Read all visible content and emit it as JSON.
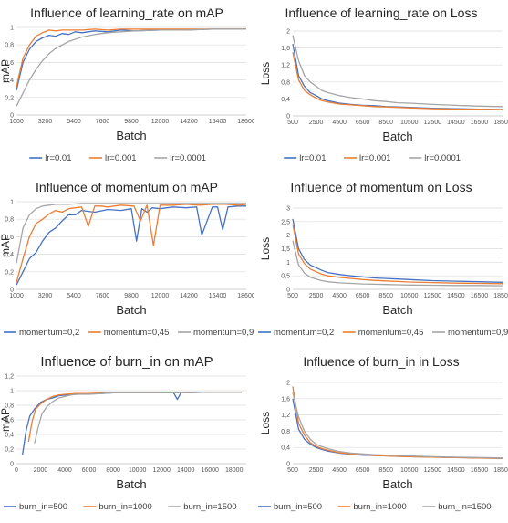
{
  "chart_data": [
    {
      "type": "line",
      "title": "Influence of learning_rate on mAP",
      "xlabel": "Batch",
      "ylabel": "mAP",
      "xlim": [
        1000,
        18600
      ],
      "ylim": [
        0,
        1
      ],
      "x_ticks": [
        "1000",
        "3200",
        "5400",
        "7600",
        "9800",
        "12000",
        "14200",
        "16400",
        "18600"
      ],
      "y_ticks": [
        "0",
        "0,2",
        "0,4",
        "0,6",
        "0,8",
        "1"
      ],
      "grid": true,
      "legend_position": "bottom",
      "series": [
        {
          "name": "lr=0.01",
          "color": "#4472c4",
          "x": [
            1000,
            1500,
            2000,
            2500,
            3000,
            3500,
            4000,
            4500,
            5000,
            5500,
            6000,
            7000,
            8000,
            9000,
            10000,
            12000,
            14000,
            16000,
            18600
          ],
          "y": [
            0.28,
            0.6,
            0.75,
            0.84,
            0.88,
            0.91,
            0.9,
            0.93,
            0.92,
            0.95,
            0.94,
            0.96,
            0.95,
            0.97,
            0.96,
            0.97,
            0.97,
            0.98,
            0.98
          ]
        },
        {
          "name": "lr=0.001",
          "color": "#ed7d31",
          "x": [
            1000,
            1500,
            2000,
            2500,
            3000,
            3500,
            4000,
            4500,
            5000,
            6000,
            7000,
            8000,
            9000,
            10000,
            12000,
            14000,
            16000,
            18600
          ],
          "y": [
            0.32,
            0.65,
            0.8,
            0.9,
            0.94,
            0.97,
            0.96,
            0.97,
            0.97,
            0.97,
            0.98,
            0.97,
            0.98,
            0.98,
            0.98,
            0.98,
            0.98,
            0.98
          ]
        },
        {
          "name": "lr=0.0001",
          "color": "#a5a5a5",
          "x": [
            1000,
            1500,
            2000,
            2500,
            3000,
            3500,
            4000,
            5000,
            6000,
            7000,
            8000,
            9000,
            10000,
            12000,
            14000,
            16000,
            18600
          ],
          "y": [
            0.1,
            0.25,
            0.4,
            0.52,
            0.62,
            0.7,
            0.76,
            0.84,
            0.89,
            0.92,
            0.94,
            0.95,
            0.96,
            0.97,
            0.97,
            0.98,
            0.98
          ]
        }
      ]
    },
    {
      "type": "line",
      "title": "Influence of learning_rate on Loss",
      "xlabel": "Batch",
      "ylabel": "Loss",
      "xlim": [
        500,
        18500
      ],
      "ylim": [
        0,
        2
      ],
      "x_ticks": [
        "500",
        "2500",
        "4500",
        "6500",
        "8500",
        "10500",
        "12500",
        "14500",
        "16500",
        "18500"
      ],
      "y_ticks": [
        "0",
        "0,4",
        "0,8",
        "1,2",
        "1,6",
        "2"
      ],
      "grid": true,
      "legend_position": "bottom",
      "series": [
        {
          "name": "lr=0.01",
          "color": "#4472c4",
          "x": [
            500,
            1000,
            1500,
            2000,
            2500,
            3000,
            3500,
            4500,
            5500,
            6500,
            7500,
            8500,
            9500,
            10500,
            12500,
            14500,
            16500,
            18500
          ],
          "y": [
            1.7,
            0.95,
            0.7,
            0.55,
            0.48,
            0.4,
            0.36,
            0.3,
            0.27,
            0.25,
            0.24,
            0.22,
            0.21,
            0.2,
            0.18,
            0.17,
            0.16,
            0.15
          ]
        },
        {
          "name": "lr=0.001",
          "color": "#ed7d31",
          "x": [
            500,
            1000,
            1500,
            2000,
            2500,
            3000,
            3500,
            4500,
            5500,
            6500,
            7500,
            8500,
            9500,
            10500,
            12500,
            14500,
            16500,
            18500
          ],
          "y": [
            1.5,
            0.85,
            0.6,
            0.5,
            0.42,
            0.36,
            0.33,
            0.28,
            0.26,
            0.24,
            0.22,
            0.21,
            0.2,
            0.19,
            0.17,
            0.16,
            0.16,
            0.15
          ]
        },
        {
          "name": "lr=0.0001",
          "color": "#a5a5a5",
          "x": [
            500,
            1000,
            1500,
            2000,
            2500,
            3000,
            3500,
            4500,
            5500,
            6500,
            7500,
            8500,
            9500,
            10500,
            12500,
            14500,
            16500,
            18500
          ],
          "y": [
            1.9,
            1.3,
            0.95,
            0.8,
            0.7,
            0.6,
            0.55,
            0.48,
            0.43,
            0.4,
            0.36,
            0.34,
            0.31,
            0.3,
            0.27,
            0.25,
            0.23,
            0.22
          ]
        }
      ]
    },
    {
      "type": "line",
      "title": "Influence of momentum on mAP",
      "xlabel": "Batch",
      "ylabel": "mAP",
      "xlim": [
        1000,
        18600
      ],
      "ylim": [
        0,
        1
      ],
      "x_ticks": [
        "1000",
        "3200",
        "5400",
        "7600",
        "9800",
        "12000",
        "14200",
        "16400",
        "18600"
      ],
      "y_ticks": [
        "0",
        "0,2",
        "0,4",
        "0,6",
        "0,8",
        "1"
      ],
      "grid": true,
      "legend_position": "bottom",
      "series": [
        {
          "name": "momentum=0,2",
          "color": "#4472c4",
          "x": [
            1000,
            1500,
            2000,
            2500,
            3000,
            3500,
            4000,
            4500,
            5000,
            5500,
            6000,
            7000,
            8000,
            9000,
            9800,
            10200,
            10600,
            11000,
            11400,
            12000,
            13000,
            14000,
            14800,
            15200,
            16000,
            16400,
            16800,
            17200,
            18000,
            18600
          ],
          "y": [
            0.05,
            0.2,
            0.35,
            0.42,
            0.55,
            0.65,
            0.7,
            0.78,
            0.85,
            0.85,
            0.9,
            0.88,
            0.91,
            0.9,
            0.92,
            0.55,
            0.92,
            0.88,
            0.93,
            0.92,
            0.94,
            0.93,
            0.94,
            0.62,
            0.94,
            0.94,
            0.68,
            0.94,
            0.95,
            0.95
          ]
        },
        {
          "name": "momentum=0,45",
          "color": "#ed7d31",
          "x": [
            1000,
            1500,
            2000,
            2500,
            3000,
            3500,
            4000,
            4500,
            5000,
            5500,
            6000,
            6500,
            7000,
            7500,
            8000,
            9000,
            10000,
            10500,
            11000,
            11500,
            12000,
            13000,
            14000,
            15000,
            16000,
            17000,
            18000,
            18600
          ],
          "y": [
            0.08,
            0.35,
            0.6,
            0.75,
            0.8,
            0.86,
            0.9,
            0.88,
            0.92,
            0.93,
            0.94,
            0.72,
            0.95,
            0.95,
            0.94,
            0.96,
            0.95,
            0.78,
            0.96,
            0.5,
            0.96,
            0.96,
            0.97,
            0.96,
            0.97,
            0.97,
            0.96,
            0.97
          ]
        },
        {
          "name": "momentum=0,9",
          "color": "#a5a5a5",
          "x": [
            1000,
            1500,
            2000,
            2500,
            3000,
            3500,
            4000,
            4500,
            5000,
            6000,
            7000,
            8000,
            9000,
            10000,
            12000,
            14000,
            16000,
            18600
          ],
          "y": [
            0.3,
            0.7,
            0.85,
            0.92,
            0.95,
            0.96,
            0.97,
            0.97,
            0.97,
            0.98,
            0.98,
            0.98,
            0.98,
            0.98,
            0.98,
            0.98,
            0.98,
            0.98
          ]
        }
      ]
    },
    {
      "type": "line",
      "title": "Influence of momentum on Loss",
      "xlabel": "Batch",
      "ylabel": "Loss",
      "xlim": [
        500,
        18500
      ],
      "ylim": [
        0,
        3
      ],
      "x_ticks": [
        "500",
        "2500",
        "4500",
        "6500",
        "8500",
        "10500",
        "12500",
        "14500",
        "16500",
        "18500"
      ],
      "y_ticks": [
        "0",
        "0,5",
        "1",
        "1,5",
        "2",
        "2,5",
        "3"
      ],
      "grid": true,
      "legend_position": "bottom",
      "series": [
        {
          "name": "momentum=0,2",
          "color": "#4472c4",
          "x": [
            500,
            1000,
            1500,
            2000,
            2500,
            3000,
            3500,
            4500,
            5500,
            6500,
            7500,
            8500,
            9500,
            10500,
            12500,
            14500,
            16500,
            18500
          ],
          "y": [
            2.6,
            1.5,
            1.1,
            0.9,
            0.8,
            0.7,
            0.62,
            0.55,
            0.5,
            0.46,
            0.42,
            0.4,
            0.38,
            0.36,
            0.32,
            0.3,
            0.28,
            0.26
          ]
        },
        {
          "name": "momentum=0,45",
          "color": "#ed7d31",
          "x": [
            500,
            1000,
            1500,
            2000,
            2500,
            3000,
            3500,
            4500,
            5500,
            6500,
            7500,
            8500,
            9500,
            10500,
            12500,
            14500,
            16500,
            18500
          ],
          "y": [
            2.4,
            1.3,
            0.95,
            0.75,
            0.65,
            0.56,
            0.5,
            0.44,
            0.4,
            0.36,
            0.33,
            0.31,
            0.29,
            0.27,
            0.25,
            0.23,
            0.22,
            0.21
          ]
        },
        {
          "name": "momentum=0,9",
          "color": "#a5a5a5",
          "x": [
            500,
            1000,
            1500,
            2000,
            2500,
            3000,
            3500,
            4500,
            5500,
            6500,
            7500,
            8500,
            9500,
            10500,
            12500,
            14500,
            16500,
            18500
          ],
          "y": [
            1.8,
            0.9,
            0.6,
            0.45,
            0.38,
            0.32,
            0.28,
            0.24,
            0.22,
            0.2,
            0.19,
            0.18,
            0.17,
            0.16,
            0.15,
            0.14,
            0.14,
            0.13
          ]
        }
      ]
    },
    {
      "type": "line",
      "title": "Influence of burn_in on mAP",
      "xlabel": "Batch",
      "ylabel": "mAP",
      "xlim": [
        0,
        19000
      ],
      "ylim": [
        0,
        1.2
      ],
      "x_ticks": [
        "0",
        "2000",
        "4000",
        "6000",
        "8000",
        "10000",
        "12000",
        "14000",
        "16000",
        "18000"
      ],
      "y_ticks": [
        "0",
        "0,2",
        "0,4",
        "0,6",
        "0,8",
        "1",
        "1,2"
      ],
      "grid": true,
      "legend_position": "bottom",
      "series": [
        {
          "name": "burn_in=500",
          "color": "#4472c4",
          "x": [
            500,
            800,
            1100,
            1500,
            2000,
            2500,
            3000,
            3500,
            4000,
            5000,
            6000,
            7000,
            8000,
            10000,
            12000,
            13000,
            13300,
            13600,
            14000,
            16000,
            18600
          ],
          "y": [
            0.12,
            0.45,
            0.65,
            0.75,
            0.84,
            0.88,
            0.9,
            0.93,
            0.94,
            0.95,
            0.96,
            0.96,
            0.97,
            0.97,
            0.97,
            0.97,
            0.88,
            0.97,
            0.97,
            0.98,
            0.98
          ]
        },
        {
          "name": "burn_in=1000",
          "color": "#ed7d31",
          "x": [
            1000,
            1300,
            1600,
            2000,
            2500,
            3000,
            3500,
            4000,
            5000,
            6000,
            7000,
            8000,
            10000,
            12000,
            14000,
            16000,
            18600
          ],
          "y": [
            0.3,
            0.58,
            0.75,
            0.82,
            0.88,
            0.92,
            0.94,
            0.95,
            0.96,
            0.96,
            0.97,
            0.97,
            0.97,
            0.97,
            0.98,
            0.98,
            0.98
          ]
        },
        {
          "name": "burn_in=1500",
          "color": "#a5a5a5",
          "x": [
            1500,
            1800,
            2100,
            2500,
            3000,
            3500,
            4000,
            4500,
            5000,
            6000,
            7000,
            8000,
            10000,
            12000,
            14000,
            16000,
            18600
          ],
          "y": [
            0.28,
            0.5,
            0.68,
            0.78,
            0.85,
            0.9,
            0.92,
            0.94,
            0.95,
            0.95,
            0.96,
            0.97,
            0.97,
            0.97,
            0.97,
            0.98,
            0.98
          ]
        }
      ]
    },
    {
      "type": "line",
      "title": "Influence of burn_in in Loss",
      "xlabel": "Batch",
      "ylabel": "Loss",
      "xlim": [
        500,
        18500
      ],
      "ylim": [
        0,
        2
      ],
      "x_ticks": [
        "500",
        "2500",
        "4500",
        "6500",
        "8500",
        "10500",
        "12500",
        "14500",
        "16500",
        "18500"
      ],
      "y_ticks": [
        "0",
        "0,4",
        "0,8",
        "1,2",
        "1,6",
        "2"
      ],
      "grid": true,
      "legend_position": "bottom",
      "series": [
        {
          "name": "burn_in=500",
          "color": "#4472c4",
          "x": [
            500,
            1000,
            1500,
            2000,
            2500,
            3000,
            3500,
            4500,
            5500,
            6500,
            7500,
            8500,
            9500,
            10500,
            12500,
            14500,
            16500,
            18500
          ],
          "y": [
            1.6,
            0.85,
            0.6,
            0.48,
            0.4,
            0.35,
            0.31,
            0.26,
            0.23,
            0.21,
            0.2,
            0.19,
            0.18,
            0.17,
            0.16,
            0.15,
            0.14,
            0.13
          ]
        },
        {
          "name": "burn_in=1000",
          "color": "#ed7d31",
          "x": [
            500,
            1000,
            1500,
            2000,
            2500,
            3000,
            3500,
            4500,
            5500,
            6500,
            7500,
            8500,
            9500,
            10500,
            12500,
            14500,
            16500,
            18500
          ],
          "y": [
            1.9,
            1.0,
            0.7,
            0.52,
            0.43,
            0.37,
            0.33,
            0.27,
            0.24,
            0.22,
            0.2,
            0.19,
            0.18,
            0.17,
            0.16,
            0.15,
            0.14,
            0.13
          ]
        },
        {
          "name": "burn_in=1500",
          "color": "#a5a5a5",
          "x": [
            500,
            1000,
            1500,
            2000,
            2500,
            3000,
            3500,
            4500,
            5500,
            6500,
            7500,
            8500,
            9500,
            10500,
            12500,
            14500,
            16500,
            18500
          ],
          "y": [
            1.75,
            1.15,
            0.8,
            0.6,
            0.48,
            0.42,
            0.37,
            0.3,
            0.26,
            0.24,
            0.22,
            0.21,
            0.2,
            0.19,
            0.17,
            0.16,
            0.15,
            0.14
          ]
        }
      ]
    }
  ]
}
